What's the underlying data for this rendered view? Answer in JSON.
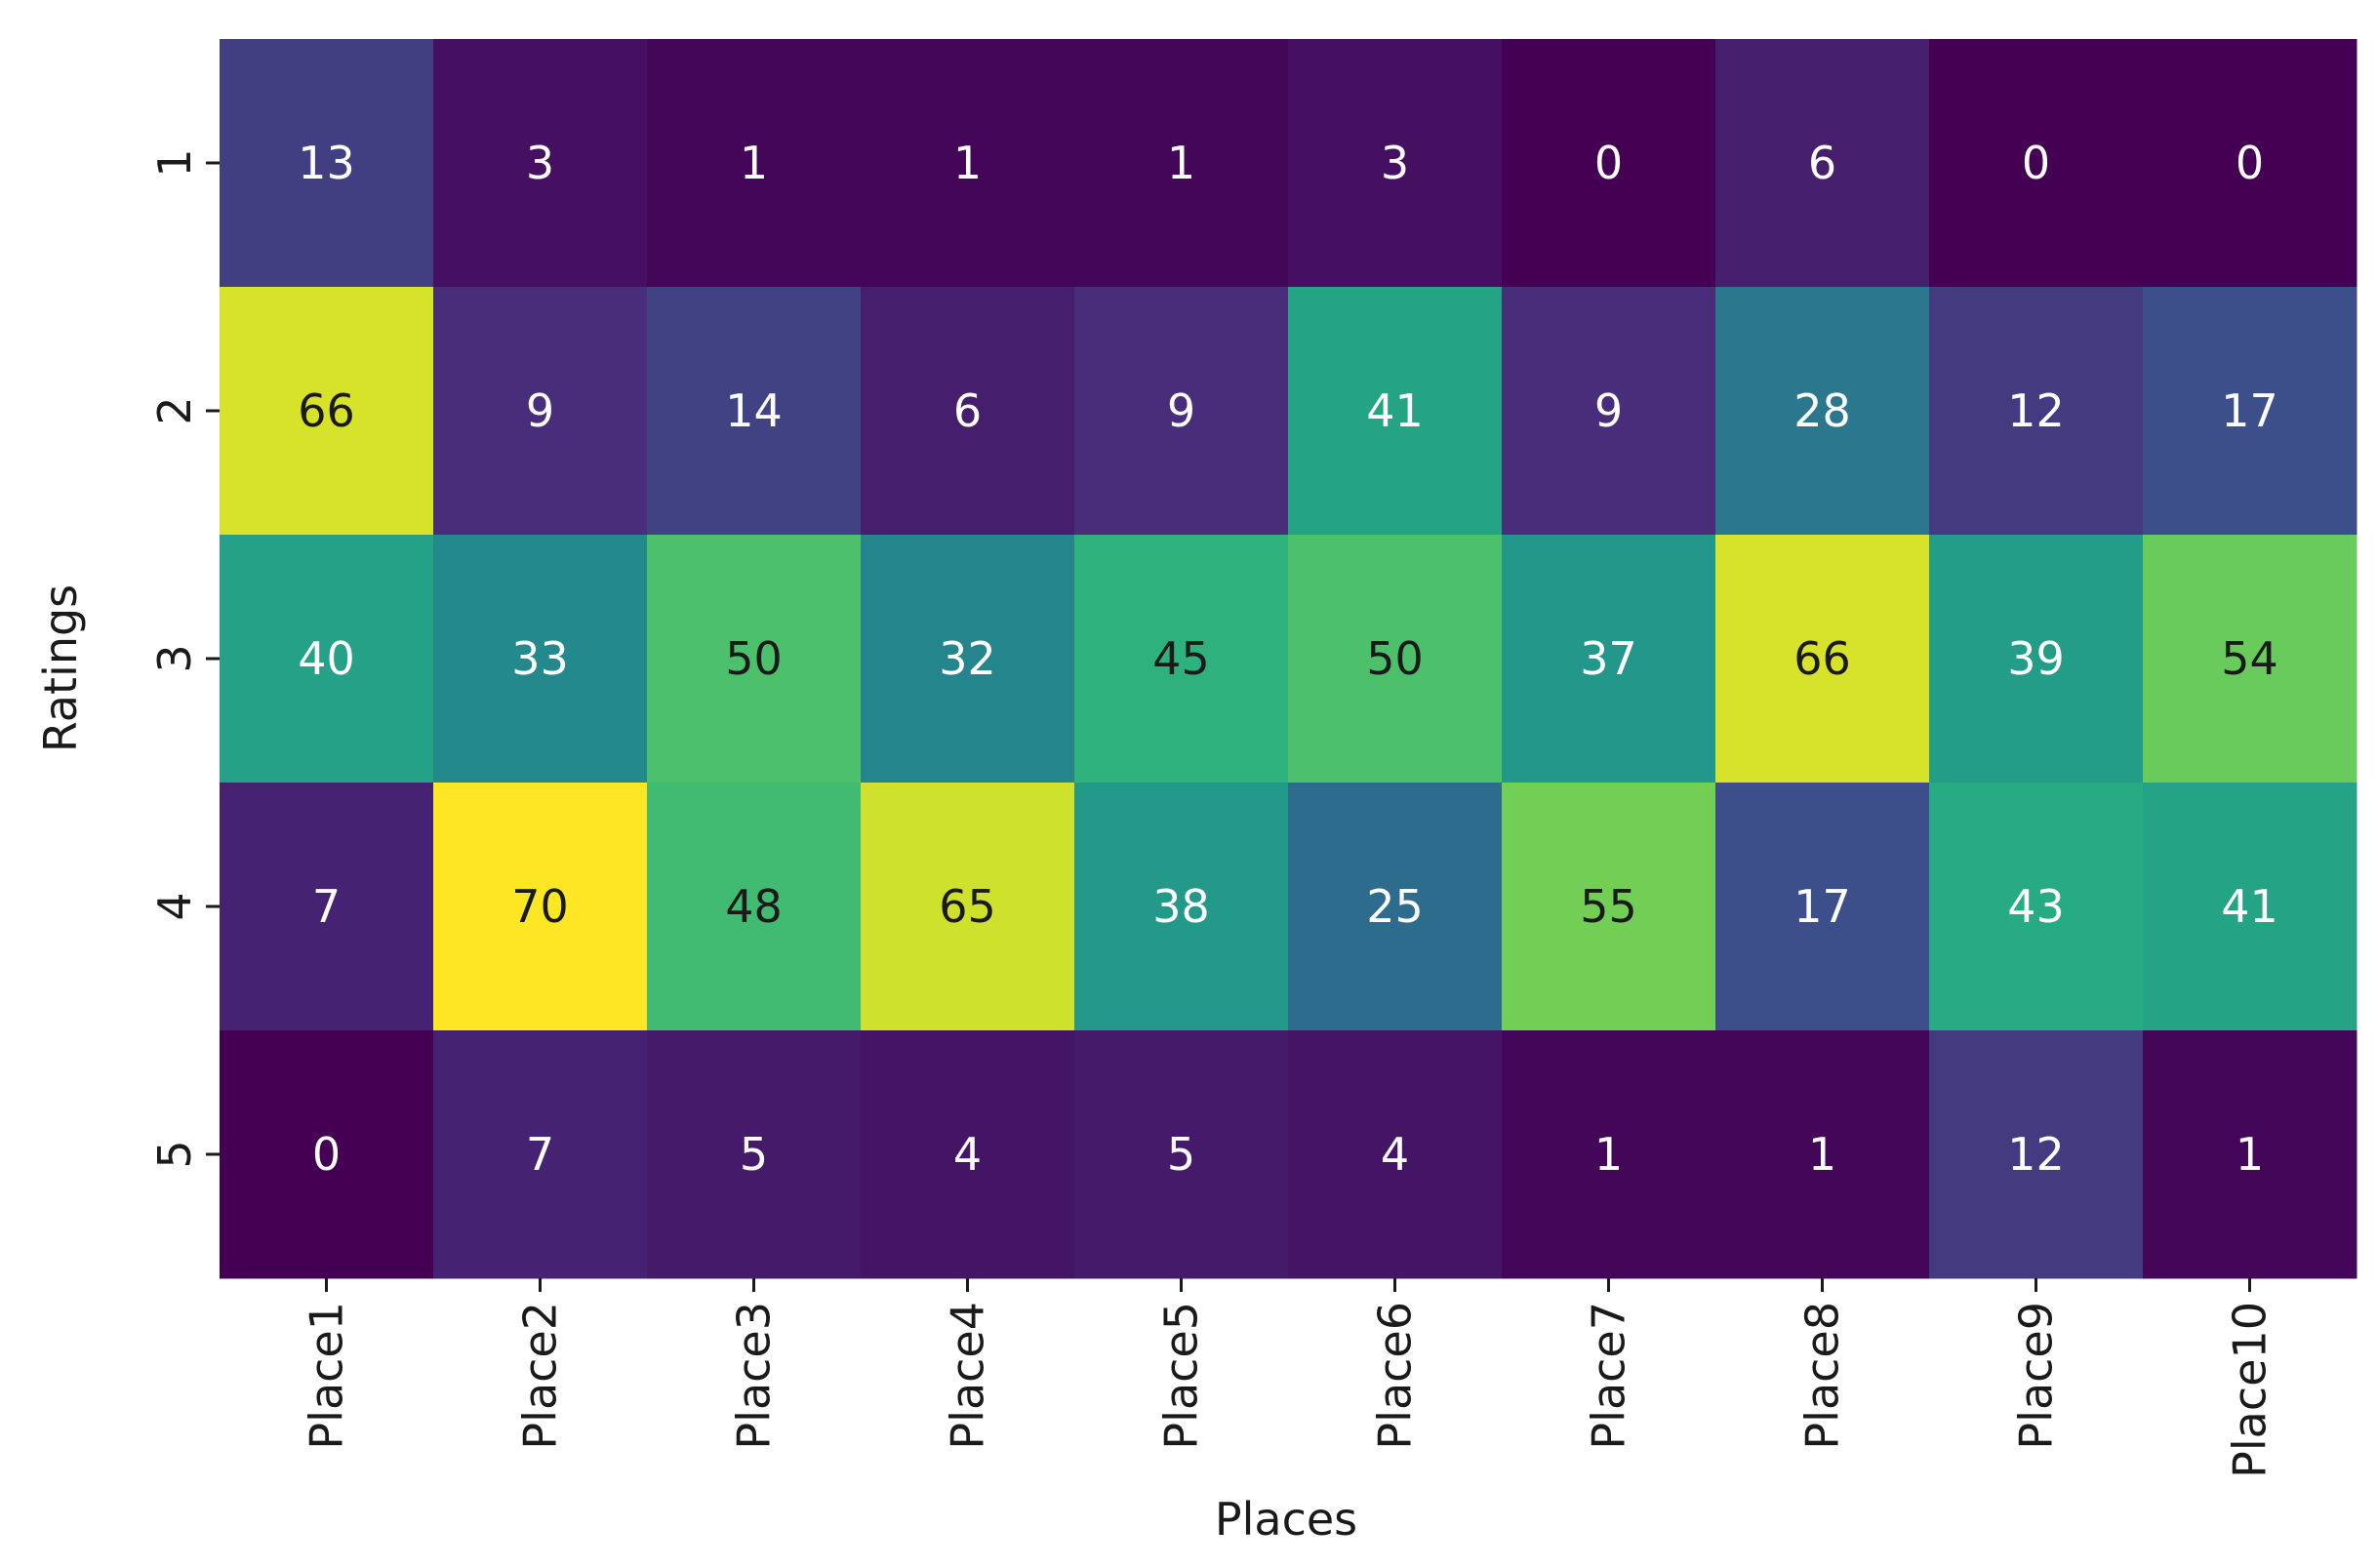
{
  "chart_data": {
    "type": "heatmap",
    "title": "",
    "xlabel": "Places",
    "ylabel": "Ratings",
    "x_categories": [
      "Place1",
      "Place2",
      "Place3",
      "Place4",
      "Place5",
      "Place6",
      "Place7",
      "Place8",
      "Place9",
      "Place10"
    ],
    "y_categories": [
      "1",
      "2",
      "3",
      "4",
      "5"
    ],
    "values": [
      [
        13,
        3,
        1,
        1,
        1,
        3,
        0,
        6,
        0,
        0
      ],
      [
        66,
        9,
        14,
        6,
        9,
        41,
        9,
        28,
        12,
        17
      ],
      [
        40,
        33,
        50,
        32,
        45,
        50,
        37,
        66,
        39,
        54
      ],
      [
        7,
        70,
        48,
        65,
        38,
        25,
        55,
        17,
        43,
        41
      ],
      [
        0,
        7,
        5,
        4,
        5,
        4,
        1,
        1,
        12,
        1
      ]
    ],
    "colormap": "viridis",
    "vmin": 0,
    "vmax": 70,
    "annotated": true,
    "colorbar": false
  }
}
